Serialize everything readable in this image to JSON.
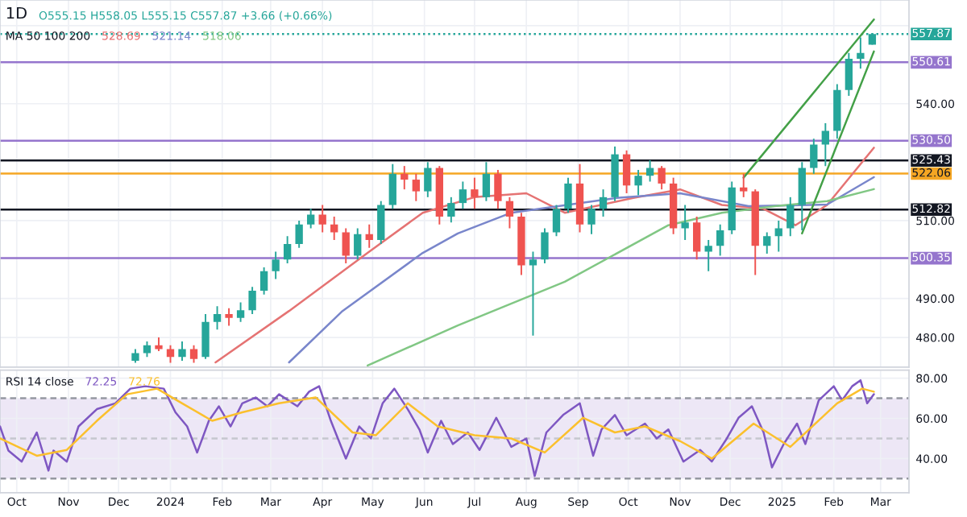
{
  "chart_data": [
    {
      "type": "candlestick",
      "title": "1D",
      "subtitle": "O555.15 H558.05 L555.15 C557.87 +3.66 (+0.66%)",
      "annotations": [
        "MA 50 100 200"
      ],
      "xlim": [
        "2023-09-21",
        "2025-03-18"
      ],
      "ylim": [
        472.4,
        566.6
      ],
      "xticks": [
        {
          "value": "2023-10-01",
          "label": null
        },
        {
          "value": "2023-11-01",
          "label": null
        },
        {
          "value": "2023-12-01",
          "label": null
        },
        {
          "value": "2024-01-01",
          "label": null
        },
        {
          "value": "2024-02-01",
          "label": null
        },
        {
          "value": "2024-03-01",
          "label": null
        },
        {
          "value": "2024-04-01",
          "label": null
        },
        {
          "value": "2024-05-01",
          "label": null
        },
        {
          "value": "2024-06-01",
          "label": null
        },
        {
          "value": "2024-07-01",
          "label": null
        },
        {
          "value": "2024-08-01",
          "label": null
        },
        {
          "value": "2024-09-01",
          "label": null
        },
        {
          "value": "2024-10-01",
          "label": null
        },
        {
          "value": "2024-11-01",
          "label": null
        },
        {
          "value": "2024-12-01",
          "label": null
        },
        {
          "value": "2025-01-01",
          "label": null
        },
        {
          "value": "2025-02-01",
          "label": null
        },
        {
          "value": "2025-03-01",
          "label": null
        }
      ],
      "yticks": [
        {
          "value": 480,
          "label": "480.00"
        },
        {
          "value": 490,
          "label": "490.00"
        },
        {
          "value": 510,
          "label": "510.00"
        },
        {
          "value": 540,
          "label": "540.00"
        },
        {
          "value": 560,
          "label": null
        }
      ],
      "tick_labels": "y",
      "grid": true,
      "ref_lines": [
        {
          "axis": "y",
          "value": 557.87,
          "label": "557.87",
          "color": "#26a69a",
          "line_style": "dotted"
        },
        {
          "axis": "y",
          "value": 550.61,
          "label": "550.61",
          "color": "#9575cd",
          "line_style": "solid"
        },
        {
          "axis": "y",
          "value": 530.5,
          "label": "530.50",
          "color": "#9575cd",
          "line_style": "solid"
        },
        {
          "axis": "y",
          "value": 525.43,
          "label": "525.43",
          "color": "#131722",
          "line_style": "solid"
        },
        {
          "axis": "y",
          "value": 522.06,
          "label": "522.06",
          "color": "#f5a623",
          "line_style": "solid"
        },
        {
          "axis": "y",
          "value": 512.82,
          "label": "512.82",
          "color": "#131722",
          "line_style": "solid"
        },
        {
          "axis": "y",
          "value": 500.35,
          "label": "500.35",
          "color": "#9575cd",
          "line_style": "solid"
        }
      ],
      "series": [
        {
          "type": "line",
          "name": "528.69",
          "color": "#e57373",
          "x": [
            "2024-01-28",
            "2024-03-12",
            "2024-04-28",
            "2024-05-31",
            "2024-07-01",
            "2024-08-01",
            "2024-08-24",
            "2024-10-04",
            "2024-11-01",
            "2024-11-26",
            "2024-12-21",
            "2025-01-09",
            "2025-01-28",
            "2025-02-25"
          ],
          "values": [
            473.6,
            486.8,
            501.7,
            512,
            516,
            517,
            512,
            515.8,
            518,
            514,
            513,
            508.8,
            514,
            528.69
          ]
        },
        {
          "type": "line",
          "name": "521.14",
          "color": "#7986cb",
          "x": [
            "2024-03-12",
            "2024-04-13",
            "2024-05-31",
            "2024-06-21",
            "2024-07-23",
            "2024-09-24",
            "2024-11-01",
            "2024-12-12",
            "2025-01-28",
            "2025-02-25"
          ],
          "values": [
            473.6,
            486.8,
            501.7,
            506.7,
            512,
            515.8,
            517,
            513.7,
            514.1,
            521.14
          ]
        },
        {
          "type": "line",
          "name": "518.06",
          "color": "#81c784",
          "x": [
            "2024-04-28",
            "2024-06-21",
            "2024-08-24",
            "2024-10-25",
            "2024-11-26",
            "2024-12-28",
            "2025-01-28",
            "2025-02-25"
          ],
          "values": [
            472.8,
            483.1,
            494.3,
            508.8,
            512,
            513.7,
            515,
            518.06
          ]
        },
        {
          "type": "line",
          "color": "#43a047",
          "x": [
            "2024-12-09",
            "2025-02-25"
          ],
          "values": [
            521,
            561.6
          ]
        },
        {
          "type": "line",
          "color": "#43a047",
          "x": [
            "2025-01-13",
            "2025-02-25"
          ],
          "values": [
            506.7,
            553.4
          ]
        },
        {
          "type": "candlestick",
          "x": [
            "2023-12-11",
            "2023-12-18",
            "2023-12-25",
            "2024-01-01",
            "2024-01-08",
            "2024-01-15",
            "2024-01-22",
            "2024-01-29",
            "2024-02-05",
            "2024-02-12",
            "2024-02-19",
            "2024-02-26",
            "2024-03-04",
            "2024-03-11",
            "2024-03-18",
            "2024-03-25",
            "2024-04-01",
            "2024-04-08",
            "2024-04-15",
            "2024-04-22",
            "2024-04-29",
            "2024-05-06",
            "2024-05-13",
            "2024-05-20",
            "2024-05-27",
            "2024-06-03",
            "2024-06-10",
            "2024-06-17",
            "2024-06-24",
            "2024-07-01",
            "2024-07-08",
            "2024-07-15",
            "2024-07-22",
            "2024-07-29",
            "2024-08-05",
            "2024-08-12",
            "2024-08-19",
            "2024-08-26",
            "2024-09-02",
            "2024-09-09",
            "2024-09-16",
            "2024-09-23",
            "2024-09-30",
            "2024-10-07",
            "2024-10-14",
            "2024-10-21",
            "2024-10-28",
            "2024-11-04",
            "2024-11-11",
            "2024-11-18",
            "2024-11-25",
            "2024-12-02",
            "2024-12-09",
            "2024-12-16",
            "2024-12-23",
            "2024-12-30",
            "2025-01-06",
            "2025-01-13",
            "2025-01-20",
            "2025-01-27",
            "2025-02-03",
            "2025-02-10",
            "2025-02-17",
            "2025-02-24"
          ],
          "ohlc": [
            [
              474,
              477,
              473.5,
              476
            ],
            [
              476,
              479,
              475,
              478
            ],
            [
              478,
              480,
              476.5,
              477
            ],
            [
              477,
              478,
              473.5,
              475
            ],
            [
              475,
              479,
              474,
              477
            ],
            [
              477,
              478,
              473.5,
              474.5
            ],
            [
              475,
              486,
              474.5,
              484
            ],
            [
              484,
              488,
              482,
              486
            ],
            [
              486,
              487.5,
              483,
              485
            ],
            [
              485,
              489,
              484,
              487
            ],
            [
              487,
              493,
              486,
              492
            ],
            [
              492,
              498,
              491,
              497
            ],
            [
              497,
              502,
              495,
              500
            ],
            [
              500,
              506,
              499,
              504
            ],
            [
              504,
              510,
              503,
              509
            ],
            [
              509,
              513,
              508,
              511.5
            ],
            [
              511.5,
              514,
              507,
              509
            ],
            [
              509,
              511,
              505,
              507
            ],
            [
              507,
              508,
              499,
              501
            ],
            [
              501,
              508,
              500,
              506.5
            ],
            [
              506.5,
              509,
              503,
              505
            ],
            [
              505,
              515,
              504,
              514
            ],
            [
              514,
              524.5,
              513,
              522
            ],
            [
              522,
              524,
              518,
              520.5
            ],
            [
              520.5,
              522,
              515,
              517.5
            ],
            [
              517.5,
              525,
              516,
              523.5
            ],
            [
              523.5,
              524,
              509,
              511
            ],
            [
              511,
              516,
              509.5,
              514.5
            ],
            [
              514.5,
              520,
              513,
              518
            ],
            [
              518,
              521,
              513,
              516
            ],
            [
              516,
              525,
              515,
              522
            ],
            [
              522,
              523,
              513,
              515
            ],
            [
              515,
              516,
              508,
              511
            ],
            [
              511,
              512,
              496,
              498.5
            ],
            [
              498.5,
              502,
              480.5,
              500
            ],
            [
              500,
              508,
              499,
              507
            ],
            [
              507,
              514,
              506,
              513
            ],
            [
              513,
              521,
              512,
              519.5
            ],
            [
              519.5,
              524.5,
              507,
              509
            ],
            [
              509,
              514,
              506.5,
              513
            ],
            [
              513,
              518,
              511,
              516
            ],
            [
              516,
              529,
              515,
              527
            ],
            [
              527,
              528,
              517,
              519
            ],
            [
              519,
              523,
              516.5,
              521.5
            ],
            [
              521.5,
              525.5,
              520,
              523.5
            ],
            [
              523.5,
              524,
              518,
              519.5
            ],
            [
              519.5,
              521,
              506.5,
              508
            ],
            [
              508,
              514,
              505,
              509.5
            ],
            [
              509.5,
              511,
              500,
              502
            ],
            [
              502,
              505,
              497,
              503.5
            ],
            [
              503.5,
              509,
              501,
              507.5
            ],
            [
              507.5,
              520,
              506.5,
              518.5
            ],
            [
              518.5,
              522,
              516,
              517.5
            ],
            [
              517.5,
              518,
              496,
              503.5
            ],
            [
              503.5,
              507,
              501.5,
              506
            ],
            [
              506,
              510,
              502,
              508
            ],
            [
              508,
              516,
              506,
              514
            ],
            [
              514,
              525,
              507.5,
              523.5
            ],
            [
              523.5,
              531,
              522,
              529.5
            ],
            [
              529.5,
              535,
              524,
              533
            ],
            [
              533,
              545,
              531,
              543.5
            ],
            [
              543.5,
              553,
              542,
              551.5
            ],
            [
              551.5,
              557,
              549,
              553
            ],
            [
              555.15,
              558.05,
              555.15,
              557.87
            ]
          ],
          "colors": [
            "#26a69a",
            "#26a69a",
            "#ef5350",
            "#ef5350",
            "#26a69a",
            "#ef5350",
            "#26a69a",
            "#26a69a",
            "#ef5350",
            "#26a69a",
            "#26a69a",
            "#26a69a",
            "#26a69a",
            "#26a69a",
            "#26a69a",
            "#26a69a",
            "#ef5350",
            "#ef5350",
            "#ef5350",
            "#26a69a",
            "#ef5350",
            "#26a69a",
            "#26a69a",
            "#ef5350",
            "#ef5350",
            "#26a69a",
            "#ef5350",
            "#26a69a",
            "#26a69a",
            "#ef5350",
            "#26a69a",
            "#ef5350",
            "#ef5350",
            "#ef5350",
            "#26a69a",
            "#26a69a",
            "#26a69a",
            "#26a69a",
            "#ef5350",
            "#26a69a",
            "#26a69a",
            "#26a69a",
            "#ef5350",
            "#26a69a",
            "#26a69a",
            "#ef5350",
            "#ef5350",
            "#26a69a",
            "#ef5350",
            "#26a69a",
            "#26a69a",
            "#26a69a",
            "#ef5350",
            "#ef5350",
            "#26a69a",
            "#26a69a",
            "#26a69a",
            "#26a69a",
            "#26a69a",
            "#26a69a",
            "#26a69a",
            "#26a69a",
            "#26a69a",
            "#26a69a"
          ]
        }
      ]
    },
    {
      "type": "line",
      "annotations": [
        "RSI 14 close"
      ],
      "xlim": [
        "2023-09-21",
        "2025-03-18"
      ],
      "ylim": [
        23,
        84
      ],
      "xticks": [
        {
          "value": "2023-10-01",
          "label": "Oct"
        },
        {
          "value": "2023-11-01",
          "label": "Nov"
        },
        {
          "value": "2023-12-01",
          "label": "Dec"
        },
        {
          "value": "2024-01-01",
          "label": "2024"
        },
        {
          "value": "2024-02-01",
          "label": "Feb"
        },
        {
          "value": "2024-03-01",
          "label": "Mar"
        },
        {
          "value": "2024-04-01",
          "label": "Apr"
        },
        {
          "value": "2024-05-01",
          "label": "May"
        },
        {
          "value": "2024-06-01",
          "label": "Jun"
        },
        {
          "value": "2024-07-01",
          "label": "Jul"
        },
        {
          "value": "2024-08-01",
          "label": "Aug"
        },
        {
          "value": "2024-09-01",
          "label": "Sep"
        },
        {
          "value": "2024-10-01",
          "label": "Oct"
        },
        {
          "value": "2024-11-01",
          "label": "Nov"
        },
        {
          "value": "2024-12-01",
          "label": "Dec"
        },
        {
          "value": "2025-01-01",
          "label": "2025"
        },
        {
          "value": "2025-02-01",
          "label": "Feb"
        },
        {
          "value": "2025-03-01",
          "label": "Mar"
        }
      ],
      "yticks": [
        {
          "value": 40,
          "label": "40.00"
        },
        {
          "value": 60,
          "label": "60.00"
        },
        {
          "value": 80,
          "label": "80.00"
        }
      ],
      "grid": true,
      "bands": [
        {
          "axis": "y",
          "from": 30,
          "to": 70,
          "color": "#ede7f6"
        }
      ],
      "ref_lines": [
        {
          "axis": "y",
          "value": 70,
          "color": "#9598a1",
          "line_style": "dashed"
        },
        {
          "axis": "y",
          "value": 50,
          "color": "#c5c7ce",
          "line_style": "dashed"
        },
        {
          "axis": "y",
          "value": 30,
          "color": "#9598a1",
          "line_style": "dashed"
        }
      ],
      "series": [
        {
          "name": "72.25",
          "color": "#7e57c2",
          "x": [
            "2023-09-21",
            "2023-09-26",
            "2023-10-04",
            "2023-10-13",
            "2023-10-20",
            "2023-10-23",
            "2023-10-31",
            "2023-11-07",
            "2023-11-18",
            "2023-11-29",
            "2023-12-08",
            "2023-12-17",
            "2023-12-28",
            "2024-01-04",
            "2024-01-11",
            "2024-01-17",
            "2024-01-24",
            "2024-01-30",
            "2024-02-06",
            "2024-02-13",
            "2024-02-21",
            "2024-02-28",
            "2024-03-06",
            "2024-03-17",
            "2024-03-24",
            "2024-03-30",
            "2024-04-06",
            "2024-04-15",
            "2024-04-23",
            "2024-04-30",
            "2024-05-07",
            "2024-05-14",
            "2024-05-22",
            "2024-05-29",
            "2024-06-03",
            "2024-06-11",
            "2024-06-18",
            "2024-06-27",
            "2024-07-04",
            "2024-07-14",
            "2024-07-23",
            "2024-08-01",
            "2024-08-06",
            "2024-08-13",
            "2024-08-23",
            "2024-09-02",
            "2024-09-10",
            "2024-09-15",
            "2024-09-23",
            "2024-09-30",
            "2024-10-11",
            "2024-10-18",
            "2024-10-25",
            "2024-11-03",
            "2024-11-13",
            "2024-11-20",
            "2024-11-29",
            "2024-12-06",
            "2024-12-14",
            "2024-12-21",
            "2024-12-26",
            "2025-01-02",
            "2025-01-10",
            "2025-01-15",
            "2025-01-23",
            "2025-02-01",
            "2025-02-06",
            "2025-02-12",
            "2025-02-17",
            "2025-02-21",
            "2025-02-25"
          ],
          "values": [
            56,
            44,
            38.5,
            53,
            34,
            44,
            38.5,
            56,
            64.6,
            67.5,
            74.8,
            76,
            74.8,
            63,
            56,
            43,
            58.8,
            66,
            56,
            67.5,
            70.4,
            66,
            72,
            66,
            73.3,
            76,
            58.8,
            40,
            56,
            50,
            67.5,
            74.8,
            64.6,
            54.5,
            43,
            58.8,
            47.2,
            53,
            44.3,
            60.3,
            45.8,
            50,
            31.3,
            53,
            61.7,
            67.5,
            41.4,
            54.5,
            61.7,
            51.6,
            57.4,
            50,
            54.5,
            38.5,
            44.3,
            38.5,
            50,
            60.3,
            66,
            53,
            35.6,
            47.2,
            57.4,
            47.2,
            69,
            76,
            69,
            76,
            79,
            67.5,
            72
          ]
        },
        {
          "name": "72.76",
          "color": "#fbc02d",
          "x": [
            "2023-09-21",
            "2023-10-13",
            "2023-10-31",
            "2023-11-18",
            "2023-12-06",
            "2023-12-24",
            "2024-01-08",
            "2024-01-26",
            "2024-02-13",
            "2024-03-06",
            "2024-03-28",
            "2024-04-19",
            "2024-05-03",
            "2024-05-22",
            "2024-06-09",
            "2024-07-01",
            "2024-07-23",
            "2024-08-12",
            "2024-09-04",
            "2024-09-23",
            "2024-10-11",
            "2024-11-01",
            "2024-11-20",
            "2024-12-15",
            "2025-01-06",
            "2025-02-03",
            "2025-02-18",
            "2025-02-25"
          ],
          "values": [
            50,
            41.4,
            44.3,
            58.8,
            72,
            74.8,
            67.5,
            58.8,
            63,
            67.5,
            70.4,
            53,
            51.6,
            67.5,
            56,
            51.6,
            50,
            43,
            60.3,
            53,
            56,
            48.7,
            40,
            57.4,
            45.8,
            67.5,
            74.8,
            73.3
          ]
        }
      ]
    }
  ]
}
